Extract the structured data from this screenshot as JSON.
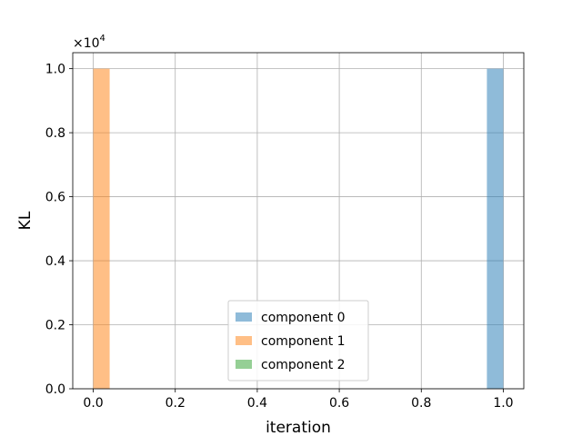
{
  "chart_data": {
    "type": "bar",
    "xlabel": "iteration",
    "ylabel": "KL",
    "y_offset_text": "×10",
    "y_offset_exponent": "4",
    "xlim": [
      -0.05,
      1.05
    ],
    "ylim": [
      0,
      10500
    ],
    "x_ticks": [
      0.0,
      0.2,
      0.4,
      0.6,
      0.8,
      1.0
    ],
    "x_tick_labels": [
      "0.0",
      "0.2",
      "0.4",
      "0.6",
      "0.8",
      "1.0"
    ],
    "y_ticks": [
      0,
      2000,
      4000,
      6000,
      8000,
      10000
    ],
    "y_tick_labels": [
      "0.0",
      "0.2",
      "0.4",
      "0.6",
      "0.8",
      "1.0"
    ],
    "grid": true,
    "legend_position": "bottom-center",
    "bar_width": 0.04,
    "series": [
      {
        "name": "component 0",
        "color": "#1f77b4",
        "bars": [
          {
            "x_start": 0.96,
            "x_end": 1.0,
            "value": 10000
          }
        ]
      },
      {
        "name": "component 1",
        "color": "#ff7f0e",
        "bars": [
          {
            "x_start": 0.0,
            "x_end": 0.04,
            "value": 10000
          }
        ]
      },
      {
        "name": "component 2",
        "color": "#2ca02c",
        "bars": []
      }
    ]
  }
}
